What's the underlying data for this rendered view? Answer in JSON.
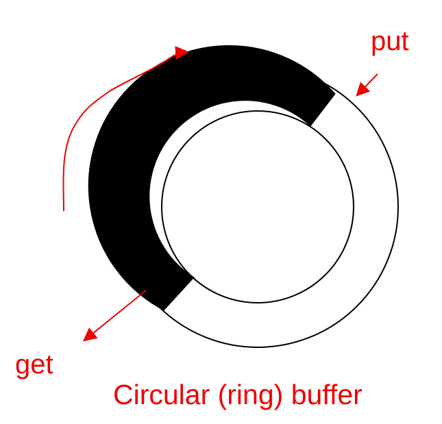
{
  "diagram": {
    "labels": {
      "put": "put",
      "get": "get",
      "caption": "Circular (ring) buffer"
    },
    "colors": {
      "annotation": "#ee0000",
      "filled_segment": "#000000",
      "outline": "#000000",
      "background": "#ffffff"
    }
  }
}
